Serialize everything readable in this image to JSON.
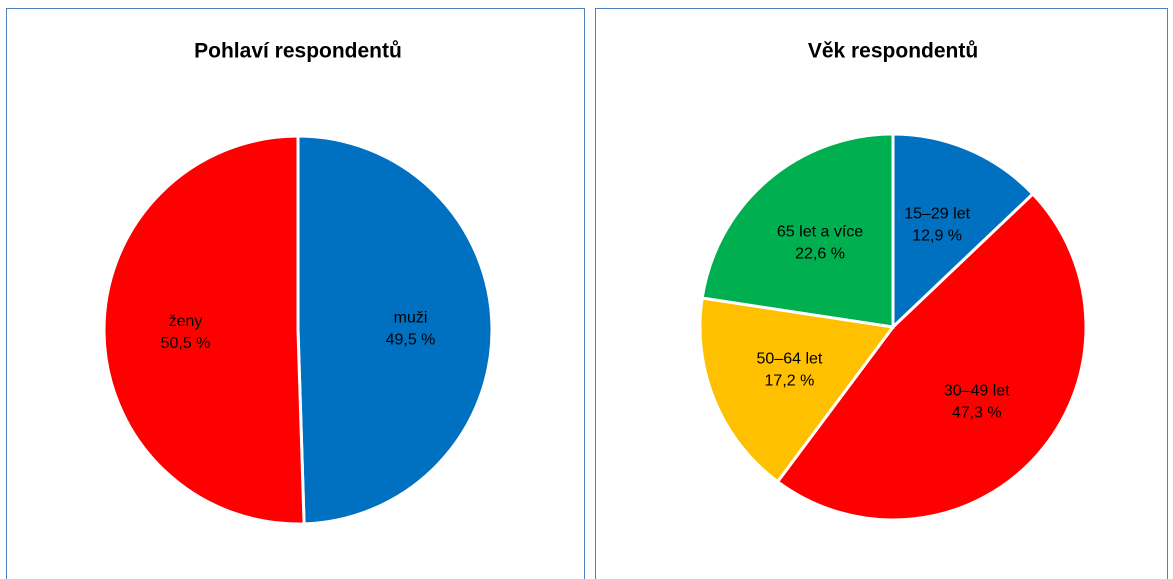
{
  "chart_data": [
    {
      "type": "pie",
      "title": "Pohlaví respondentů",
      "categories": [
        "muži",
        "ženy"
      ],
      "values": [
        49.5,
        50.5
      ],
      "value_labels": [
        "49,5 %",
        "50,5 %"
      ],
      "colors": [
        "#0070c0",
        "#ff0000"
      ]
    },
    {
      "type": "pie",
      "title": "Věk respondentů",
      "categories": [
        "15–29 let",
        "30–49 let",
        "50–64 let",
        "65 let a více"
      ],
      "values": [
        12.9,
        47.3,
        17.2,
        22.6
      ],
      "value_labels": [
        "12,9 %",
        "47,3 %",
        "17,2 %",
        "22,6 %"
      ],
      "colors": [
        "#0070c0",
        "#ff0000",
        "#ffc000",
        "#00b050"
      ]
    }
  ]
}
